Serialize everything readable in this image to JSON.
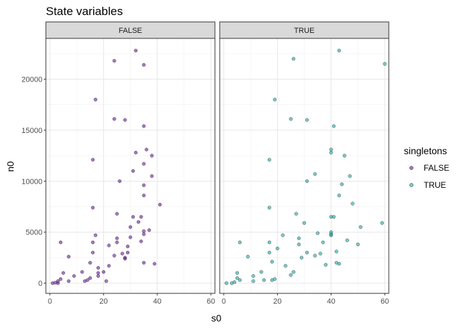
{
  "chart_data": {
    "type": "scatter",
    "title": "State variables",
    "xlabel": "s0",
    "ylabel": "n0",
    "xlim": [
      -1.5,
      61.5
    ],
    "ylim": [
      -1000,
      24000
    ],
    "x_ticks": [
      0,
      20,
      40,
      60
    ],
    "x_tick_labels": [
      "0",
      "20",
      "40",
      "60"
    ],
    "y_ticks": [
      0,
      5000,
      10000,
      15000,
      20000
    ],
    "y_tick_labels": [
      "0",
      "5000",
      "10000",
      "15000",
      "20000"
    ],
    "grid": true,
    "facets": [
      "FALSE",
      "TRUE"
    ],
    "legend": {
      "title": "singletons",
      "position": "right",
      "entries": [
        {
          "label": "FALSE",
          "color": "#6a1b9a"
        },
        {
          "label": "TRUE",
          "color": "#1fa9a2"
        }
      ]
    },
    "series": [
      {
        "name": "FALSE",
        "facet": "FALSE",
        "color": "#6a1b9a",
        "points": [
          [
            1,
            0
          ],
          [
            2,
            50
          ],
          [
            3,
            0
          ],
          [
            3,
            200
          ],
          [
            4,
            400
          ],
          [
            5,
            1000
          ],
          [
            4,
            4000
          ],
          [
            7,
            2600
          ],
          [
            7,
            200
          ],
          [
            9,
            700
          ],
          [
            12,
            1100
          ],
          [
            13,
            200
          ],
          [
            14,
            300
          ],
          [
            15,
            2000
          ],
          [
            15,
            500
          ],
          [
            16,
            3000
          ],
          [
            16,
            4000
          ],
          [
            16,
            7400
          ],
          [
            16,
            12100
          ],
          [
            17,
            4700
          ],
          [
            18,
            700
          ],
          [
            18,
            1000
          ],
          [
            18,
            1500
          ],
          [
            20,
            1100
          ],
          [
            21,
            200
          ],
          [
            22,
            1700
          ],
          [
            22,
            3700
          ],
          [
            24,
            2700
          ],
          [
            24,
            16100
          ],
          [
            24,
            21800
          ],
          [
            25,
            4400
          ],
          [
            25,
            6800
          ],
          [
            26,
            10000
          ],
          [
            27,
            2900
          ],
          [
            28,
            16000
          ],
          [
            28,
            2500
          ],
          [
            29,
            3000
          ],
          [
            29,
            3600
          ],
          [
            30,
            4500
          ],
          [
            30,
            5500
          ],
          [
            31,
            6500
          ],
          [
            31,
            11000
          ],
          [
            32,
            12800
          ],
          [
            32,
            22800
          ],
          [
            33,
            6000
          ],
          [
            34,
            4100
          ],
          [
            34,
            6500
          ],
          [
            35,
            4800
          ],
          [
            35,
            5100
          ],
          [
            35,
            8600
          ],
          [
            35,
            9600
          ],
          [
            35,
            11700
          ],
          [
            35,
            15400
          ],
          [
            35,
            21400
          ],
          [
            35,
            2000
          ],
          [
            36,
            13100
          ],
          [
            37,
            5200
          ],
          [
            38,
            10500
          ],
          [
            38,
            12500
          ],
          [
            39,
            1900
          ],
          [
            41,
            7700
          ],
          [
            17,
            18000
          ],
          [
            28,
            2400
          ],
          [
            25,
            4000
          ]
        ]
      },
      {
        "name": "TRUE",
        "facet": "TRUE",
        "color": "#1fa9a2",
        "points": [
          [
            1,
            0
          ],
          [
            3,
            0
          ],
          [
            4,
            100
          ],
          [
            5,
            500
          ],
          [
            5,
            1000
          ],
          [
            6,
            4000
          ],
          [
            6,
            300
          ],
          [
            9,
            2600
          ],
          [
            11,
            700
          ],
          [
            11,
            200
          ],
          [
            14,
            1100
          ],
          [
            15,
            300
          ],
          [
            17,
            3000
          ],
          [
            17,
            4000
          ],
          [
            17,
            7400
          ],
          [
            17,
            12100
          ],
          [
            18,
            2100
          ],
          [
            18,
            300
          ],
          [
            19,
            18000
          ],
          [
            19,
            400
          ],
          [
            20,
            3400
          ],
          [
            22,
            4700
          ],
          [
            23,
            1700
          ],
          [
            25,
            16100
          ],
          [
            25,
            800
          ],
          [
            26,
            1100
          ],
          [
            26,
            22000
          ],
          [
            27,
            6800
          ],
          [
            28,
            4400
          ],
          [
            28,
            3800
          ],
          [
            29,
            2500
          ],
          [
            31,
            3000
          ],
          [
            31,
            16000
          ],
          [
            31,
            10000
          ],
          [
            34,
            10700
          ],
          [
            34,
            2700
          ],
          [
            35,
            4900
          ],
          [
            36,
            2900
          ],
          [
            37,
            4000
          ],
          [
            38,
            1800
          ],
          [
            40,
            4700
          ],
          [
            40,
            4800
          ],
          [
            40,
            6500
          ],
          [
            40,
            12800
          ],
          [
            40,
            13100
          ],
          [
            41,
            15400
          ],
          [
            41,
            6500
          ],
          [
            42,
            3100
          ],
          [
            42,
            2000
          ],
          [
            43,
            1900
          ],
          [
            43,
            8600
          ],
          [
            43,
            22800
          ],
          [
            44,
            9700
          ],
          [
            45,
            12500
          ],
          [
            46,
            4200
          ],
          [
            47,
            10500
          ],
          [
            48,
            7800
          ],
          [
            50,
            3800
          ],
          [
            51,
            5500
          ],
          [
            59,
            5900
          ],
          [
            60,
            21500
          ],
          [
            40,
            5000
          ],
          [
            30,
            5900
          ]
        ]
      }
    ]
  }
}
